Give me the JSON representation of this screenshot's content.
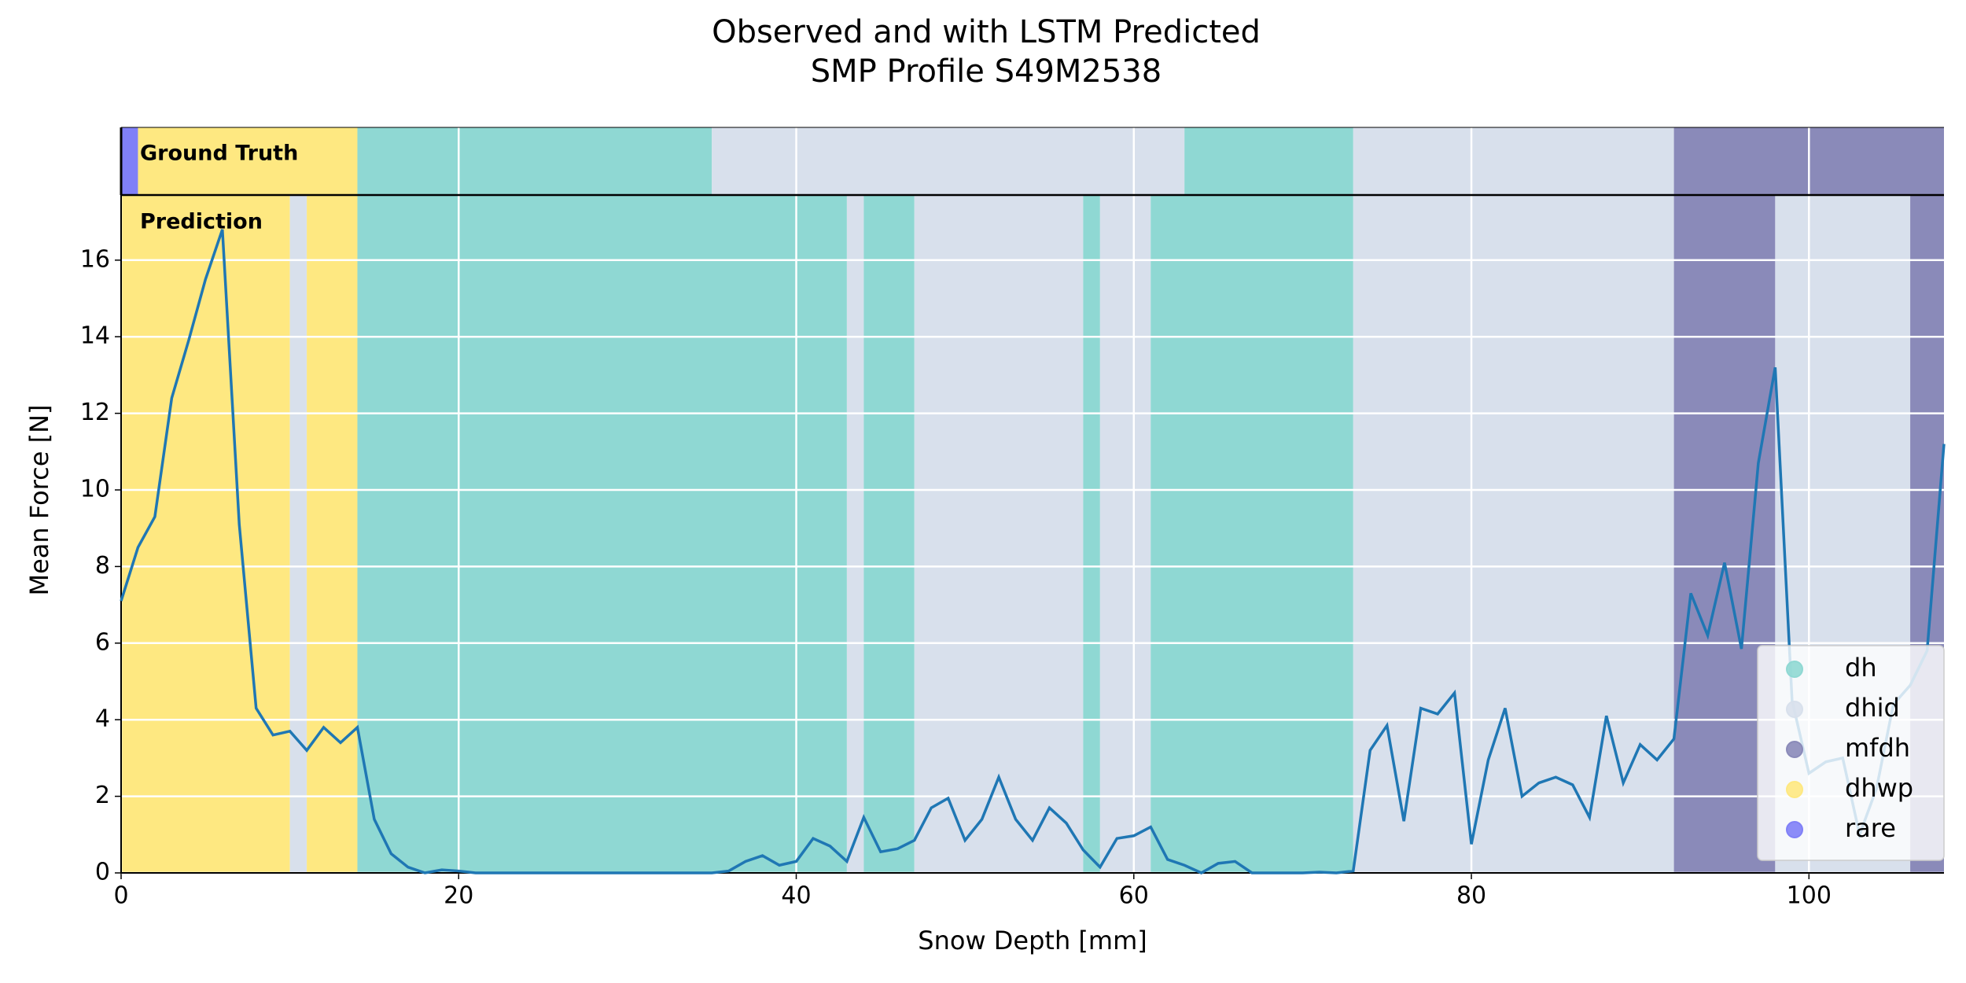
{
  "chart_data": {
    "type": "line",
    "title": "Observed and with LSTM Predicted",
    "subtitle": "SMP Profile S49M2538",
    "x_label": "Snow Depth [mm]",
    "y_label": "Mean Force [N]",
    "xlim": [
      0,
      108
    ],
    "xticks": [
      0,
      20,
      40,
      60,
      80,
      100
    ],
    "ylim": [
      0,
      17.7
    ],
    "yticks": [
      0,
      2,
      4,
      6,
      8,
      10,
      12,
      14,
      16
    ],
    "grid": true,
    "legend_position": "lower right",
    "classes": [
      {
        "name": "dh",
        "color": "#8fd8d3"
      },
      {
        "name": "dhid",
        "color": "#d8e0ec"
      },
      {
        "name": "mfdh",
        "color": "#8a8ab9"
      },
      {
        "name": "dhwp",
        "color": "#fee881"
      },
      {
        "name": "rare",
        "color": "#8080f7"
      }
    ],
    "ground_truth": {
      "label": "Ground Truth",
      "spans": [
        {
          "class": 4,
          "start": 0,
          "end": 1
        },
        {
          "class": 3,
          "start": 1,
          "end": 14
        },
        {
          "class": 0,
          "start": 14,
          "end": 35
        },
        {
          "class": 1,
          "start": 35,
          "end": 63
        },
        {
          "class": 0,
          "start": 63,
          "end": 73
        },
        {
          "class": 1,
          "start": 73,
          "end": 92
        },
        {
          "class": 2,
          "start": 92,
          "end": 108
        }
      ]
    },
    "prediction": {
      "label": "Prediction",
      "spans": [
        {
          "class": 3,
          "start": 0,
          "end": 10
        },
        {
          "class": 1,
          "start": 10,
          "end": 11
        },
        {
          "class": 3,
          "start": 11,
          "end": 14
        },
        {
          "class": 0,
          "start": 14,
          "end": 43
        },
        {
          "class": 1,
          "start": 43,
          "end": 44
        },
        {
          "class": 0,
          "start": 44,
          "end": 47
        },
        {
          "class": 1,
          "start": 47,
          "end": 57
        },
        {
          "class": 0,
          "start": 57,
          "end": 58
        },
        {
          "class": 1,
          "start": 58,
          "end": 61
        },
        {
          "class": 0,
          "start": 61,
          "end": 73
        },
        {
          "class": 1,
          "start": 73,
          "end": 92
        },
        {
          "class": 2,
          "start": 92,
          "end": 98
        },
        {
          "class": 1,
          "start": 98,
          "end": 106
        },
        {
          "class": 2,
          "start": 106,
          "end": 108
        }
      ]
    },
    "series": [
      {
        "color": "#1f77b4",
        "x": [
          0,
          1,
          2,
          3,
          4,
          5,
          6,
          7,
          8,
          9,
          10,
          11,
          12,
          13,
          14,
          15,
          16,
          17,
          18,
          19,
          20,
          21,
          22,
          23,
          24,
          25,
          26,
          27,
          28,
          29,
          30,
          31,
          32,
          33,
          34,
          35,
          36,
          37,
          38,
          39,
          40,
          41,
          42,
          43,
          44,
          45,
          46,
          47,
          48,
          49,
          50,
          51,
          52,
          53,
          54,
          55,
          56,
          57,
          58,
          59,
          60,
          61,
          62,
          63,
          64,
          65,
          66,
          67,
          68,
          69,
          70,
          71,
          72,
          73,
          74,
          75,
          76,
          77,
          78,
          79,
          80,
          81,
          82,
          83,
          84,
          85,
          86,
          87,
          88,
          89,
          90,
          91,
          92,
          93,
          94,
          95,
          96,
          97,
          98,
          99,
          100,
          101,
          102,
          103,
          104,
          105,
          106,
          107,
          108
        ],
        "values": [
          7.1,
          8.5,
          9.3,
          12.4,
          13.9,
          15.5,
          16.8,
          9.1,
          4.3,
          3.6,
          3.7,
          3.2,
          3.8,
          3.4,
          3.8,
          1.4,
          0.5,
          0.15,
          0,
          0.08,
          0.05,
          0,
          0,
          0,
          0,
          0,
          0,
          0,
          0,
          0,
          0,
          0,
          0,
          0,
          0,
          0,
          0.05,
          0.3,
          0.45,
          0.2,
          0.3,
          0.9,
          0.7,
          0.3,
          1.45,
          0.55,
          0.63,
          0.85,
          1.7,
          1.95,
          0.85,
          1.4,
          2.5,
          1.4,
          0.85,
          1.7,
          1.3,
          0.6,
          0.15,
          0.9,
          0.97,
          1.2,
          0.35,
          0.2,
          0,
          0.25,
          0.3,
          0,
          0,
          0,
          0,
          0.02,
          0,
          0.05,
          3.2,
          3.85,
          1.35,
          4.3,
          4.15,
          4.7,
          0.75,
          2.95,
          4.3,
          2,
          2.35,
          2.5,
          2.3,
          1.45,
          4.1,
          2.35,
          3.35,
          2.95,
          3.5,
          7.3,
          6.2,
          8.1,
          5.85,
          10.7,
          13.2,
          4.5,
          2.6,
          2.9,
          3,
          1,
          2.2,
          4.4,
          4.9,
          5.8,
          11.2
        ]
      }
    ]
  }
}
